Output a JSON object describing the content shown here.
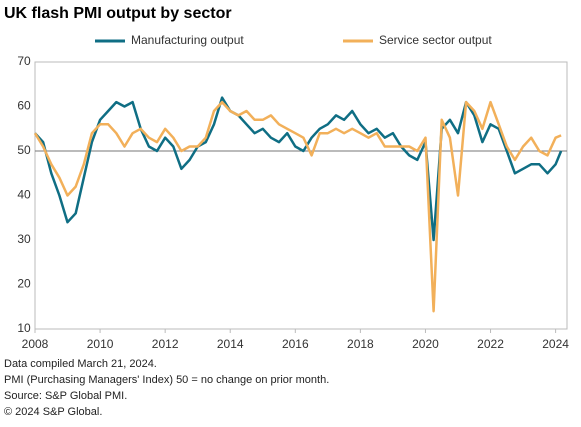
{
  "chart_data": {
    "type": "line",
    "title": "UK flash PMI output by sector",
    "x": [
      2008.0,
      2008.25,
      2008.5,
      2008.75,
      2009.0,
      2009.25,
      2009.5,
      2009.75,
      2010.0,
      2010.25,
      2010.5,
      2010.75,
      2011.0,
      2011.25,
      2011.5,
      2011.75,
      2012.0,
      2012.25,
      2012.5,
      2012.75,
      2013.0,
      2013.25,
      2013.5,
      2013.75,
      2014.0,
      2014.25,
      2014.5,
      2014.75,
      2015.0,
      2015.25,
      2015.5,
      2015.75,
      2016.0,
      2016.25,
      2016.5,
      2016.75,
      2017.0,
      2017.25,
      2017.5,
      2017.75,
      2018.0,
      2018.25,
      2018.5,
      2018.75,
      2019.0,
      2019.25,
      2019.5,
      2019.75,
      2020.0,
      2020.25,
      2020.5,
      2020.75,
      2021.0,
      2021.25,
      2021.5,
      2021.75,
      2022.0,
      2022.25,
      2022.5,
      2022.75,
      2023.0,
      2023.25,
      2023.5,
      2023.75,
      2024.0,
      2024.17
    ],
    "series": [
      {
        "name": "Manufacturing output",
        "color": "#0f6e84",
        "values": [
          54,
          52,
          45,
          40,
          34,
          36,
          44,
          52,
          57,
          59,
          61,
          60,
          61,
          55,
          51,
          50,
          53,
          51,
          46,
          48,
          51,
          52,
          56,
          62,
          59,
          58,
          56,
          54,
          55,
          53,
          52,
          54,
          51,
          50,
          53,
          55,
          56,
          58,
          57,
          59,
          56,
          54,
          55,
          53,
          54,
          51,
          49,
          48,
          52,
          30,
          55,
          57,
          54,
          61,
          58,
          52,
          56,
          55,
          50,
          45,
          46,
          47,
          47,
          45,
          47,
          50
        ]
      },
      {
        "name": "Service sector output",
        "color": "#f2b05a",
        "values": [
          54,
          51,
          47,
          44,
          40,
          42,
          47,
          54,
          56,
          56,
          54,
          51,
          54,
          55,
          53,
          52,
          55,
          53,
          50,
          51,
          51,
          53,
          59,
          61,
          59,
          58,
          59,
          57,
          57,
          58,
          56,
          55,
          54,
          53,
          49,
          54,
          54,
          55,
          54,
          55,
          54,
          53,
          54,
          51,
          51,
          51,
          51,
          50,
          53,
          14,
          57,
          53,
          40,
          61,
          59,
          55,
          61,
          56,
          51,
          48,
          51,
          53,
          50,
          49,
          53,
          53.5
        ]
      }
    ],
    "xlim": [
      2008,
      2024.35
    ],
    "xticks": [
      2008,
      2010,
      2012,
      2014,
      2016,
      2018,
      2020,
      2022,
      2024
    ],
    "ylim": [
      10,
      70
    ],
    "yticks": [
      10,
      20,
      30,
      40,
      50,
      60,
      70
    ],
    "reference_line": 50,
    "notes": [
      "Data compiled March 21, 2024.",
      "PMI (Purchasing Managers' Index) 50 = no change on prior month.",
      "Source: S&P Global PMI.",
      "© 2024 S&P Global."
    ]
  }
}
